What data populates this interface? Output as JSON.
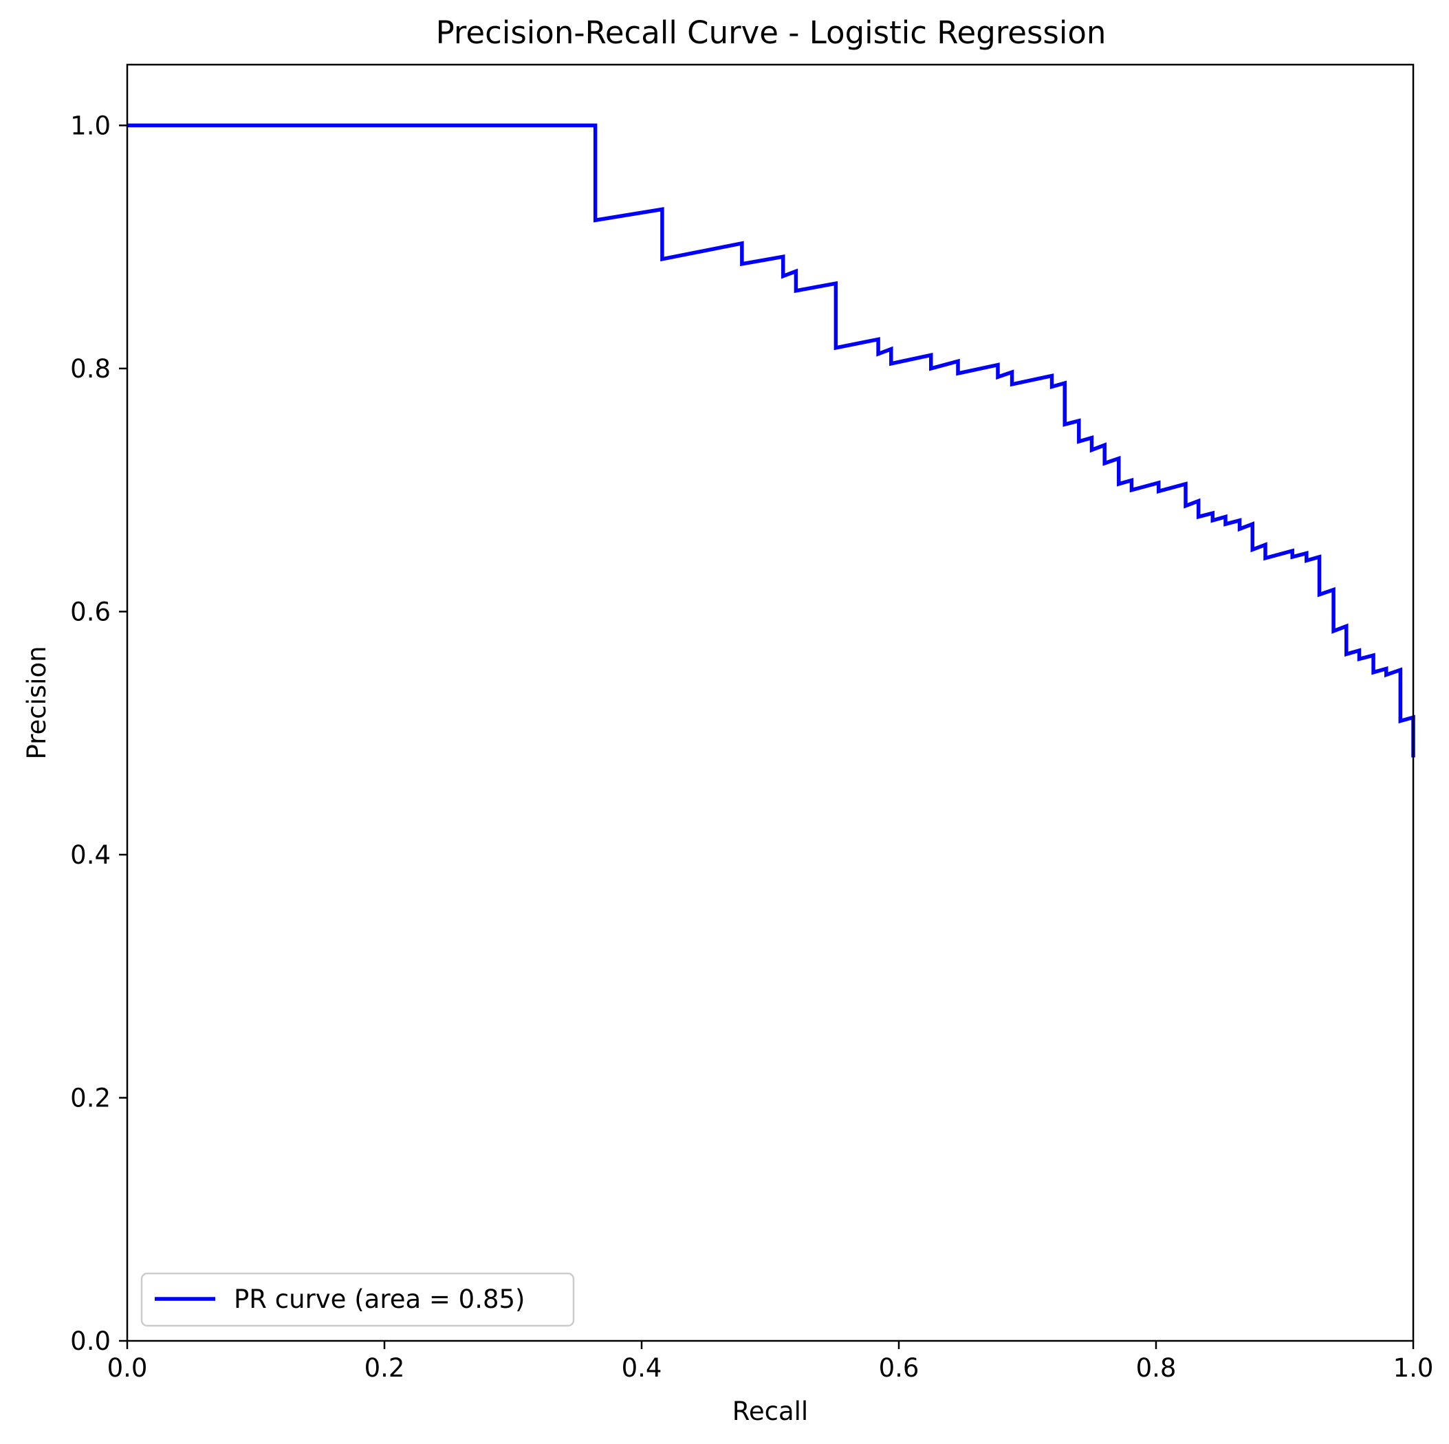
{
  "chart_data": {
    "type": "line",
    "title": "Precision-Recall Curve - Logistic Regression",
    "xlabel": "Recall",
    "ylabel": "Precision",
    "xlim": [
      0.0,
      1.0
    ],
    "ylim": [
      0.0,
      1.05
    ],
    "xticks": [
      "0.0",
      "0.2",
      "0.4",
      "0.6",
      "0.8",
      "1.0"
    ],
    "yticks": [
      "0.0",
      "0.2",
      "0.4",
      "0.6",
      "0.8",
      "1.0"
    ],
    "grid": false,
    "legend": {
      "position": "lower-left"
    },
    "series": [
      {
        "name": "PR curve (area = 0.85)",
        "color": "#0000ff",
        "points": [
          [
            0.0,
            1.0
          ],
          [
            0.364,
            1.0
          ],
          [
            0.364,
            0.922
          ],
          [
            0.416,
            0.931
          ],
          [
            0.416,
            0.89
          ],
          [
            0.478,
            0.903
          ],
          [
            0.478,
            0.886
          ],
          [
            0.51,
            0.892
          ],
          [
            0.51,
            0.876
          ],
          [
            0.52,
            0.88
          ],
          [
            0.52,
            0.864
          ],
          [
            0.551,
            0.87
          ],
          [
            0.551,
            0.817
          ],
          [
            0.584,
            0.824
          ],
          [
            0.584,
            0.812
          ],
          [
            0.594,
            0.816
          ],
          [
            0.594,
            0.804
          ],
          [
            0.625,
            0.811
          ],
          [
            0.625,
            0.8
          ],
          [
            0.646,
            0.806
          ],
          [
            0.646,
            0.796
          ],
          [
            0.677,
            0.803
          ],
          [
            0.677,
            0.793
          ],
          [
            0.688,
            0.797
          ],
          [
            0.688,
            0.787
          ],
          [
            0.719,
            0.794
          ],
          [
            0.719,
            0.785
          ],
          [
            0.729,
            0.788
          ],
          [
            0.729,
            0.754
          ],
          [
            0.74,
            0.757
          ],
          [
            0.74,
            0.74
          ],
          [
            0.75,
            0.743
          ],
          [
            0.75,
            0.733
          ],
          [
            0.76,
            0.737
          ],
          [
            0.76,
            0.722
          ],
          [
            0.771,
            0.726
          ],
          [
            0.771,
            0.705
          ],
          [
            0.781,
            0.708
          ],
          [
            0.781,
            0.7
          ],
          [
            0.802,
            0.706
          ],
          [
            0.802,
            0.699
          ],
          [
            0.823,
            0.705
          ],
          [
            0.823,
            0.687
          ],
          [
            0.833,
            0.691
          ],
          [
            0.833,
            0.678
          ],
          [
            0.844,
            0.681
          ],
          [
            0.844,
            0.675
          ],
          [
            0.854,
            0.678
          ],
          [
            0.854,
            0.672
          ],
          [
            0.865,
            0.675
          ],
          [
            0.865,
            0.668
          ],
          [
            0.875,
            0.672
          ],
          [
            0.875,
            0.651
          ],
          [
            0.885,
            0.655
          ],
          [
            0.885,
            0.644
          ],
          [
            0.906,
            0.65
          ],
          [
            0.906,
            0.645
          ],
          [
            0.917,
            0.648
          ],
          [
            0.917,
            0.642
          ],
          [
            0.927,
            0.645
          ],
          [
            0.927,
            0.614
          ],
          [
            0.938,
            0.618
          ],
          [
            0.938,
            0.584
          ],
          [
            0.948,
            0.588
          ],
          [
            0.948,
            0.565
          ],
          [
            0.958,
            0.568
          ],
          [
            0.958,
            0.561
          ],
          [
            0.969,
            0.564
          ],
          [
            0.969,
            0.55
          ],
          [
            0.979,
            0.553
          ],
          [
            0.979,
            0.548
          ],
          [
            0.99,
            0.552
          ],
          [
            0.99,
            0.51
          ],
          [
            1.0,
            0.513
          ],
          [
            1.0,
            0.48
          ]
        ]
      }
    ]
  }
}
